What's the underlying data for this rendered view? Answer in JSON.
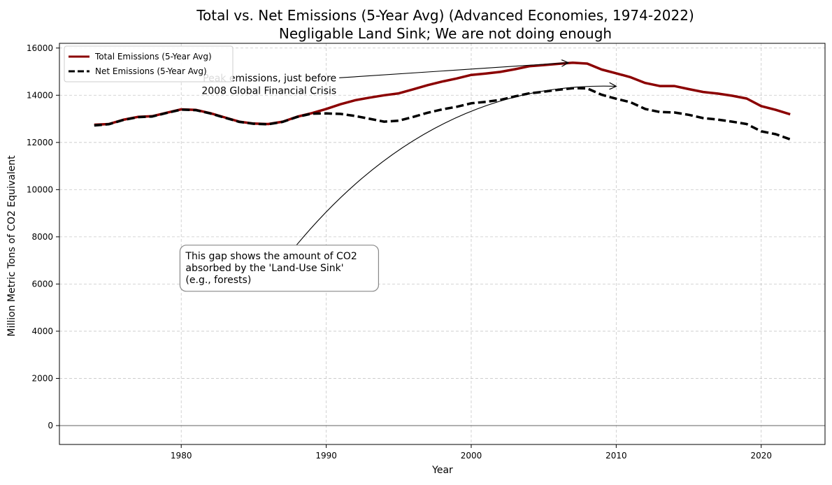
{
  "chart_data": {
    "type": "line",
    "title": "Total vs. Net Emissions (5-Year Avg) (Advanced Economies, 1974-2022)",
    "subtitle": "Negligable Land Sink; We are not doing enough",
    "xlabel": "Year",
    "ylabel": "Million Metric Tons of CO2 Equivalent",
    "xlim": [
      1971.6,
      2024.4
    ],
    "ylim": [
      -800,
      16200
    ],
    "x_ticks": [
      1980,
      1990,
      2000,
      2010,
      2020
    ],
    "y_ticks": [
      0,
      2000,
      4000,
      6000,
      8000,
      10000,
      12000,
      14000,
      16000
    ],
    "grid": true,
    "legend_position": "top-left",
    "zero_line": true,
    "x": [
      1974,
      1975,
      1976,
      1977,
      1978,
      1979,
      1980,
      1981,
      1982,
      1983,
      1984,
      1985,
      1986,
      1987,
      1988,
      1989,
      1990,
      1991,
      1992,
      1993,
      1994,
      1995,
      1996,
      1997,
      1998,
      1999,
      2000,
      2001,
      2002,
      2003,
      2004,
      2005,
      2006,
      2007,
      2008,
      2009,
      2010,
      2011,
      2012,
      2013,
      2014,
      2015,
      2016,
      2017,
      2018,
      2019,
      2020,
      2021,
      2022
    ],
    "series": [
      {
        "name": "Total Emissions (5-Year Avg)",
        "color": "#8b0000",
        "style": "solid",
        "values": [
          12750,
          12780,
          12960,
          13080,
          13110,
          13260,
          13400,
          13380,
          13240,
          13060,
          12880,
          12800,
          12780,
          12880,
          13090,
          13240,
          13420,
          13620,
          13790,
          13900,
          14000,
          14080,
          14250,
          14430,
          14580,
          14710,
          14860,
          14920,
          14990,
          15100,
          15230,
          15280,
          15330,
          15380,
          15340,
          15090,
          14930,
          14760,
          14520,
          14390,
          14390,
          14260,
          14140,
          14070,
          13980,
          13860,
          13540,
          13380,
          13190
        ]
      },
      {
        "name": "Net Emissions (5-Year Avg)",
        "color": "#000000",
        "style": "dashed",
        "values": [
          12720,
          12770,
          12950,
          13070,
          13100,
          13250,
          13390,
          13370,
          13230,
          13050,
          12870,
          12790,
          12770,
          12870,
          13080,
          13220,
          13230,
          13210,
          13120,
          13000,
          12880,
          12920,
          13080,
          13260,
          13400,
          13510,
          13660,
          13720,
          13800,
          13950,
          14080,
          14150,
          14230,
          14300,
          14290,
          14020,
          13850,
          13700,
          13420,
          13290,
          13270,
          13170,
          13030,
          12970,
          12880,
          12780,
          12470,
          12350,
          12130
        ]
      }
    ],
    "annotations": [
      {
        "lines": [
          "Peak emissions, just before",
          "2008 Global Financial Crisis"
        ],
        "target": [
          2006.7,
          15380
        ],
        "text_anchor": [
          1990.8,
          14650
        ]
      },
      {
        "lines": [
          "This gap shows the amount of CO2",
          "absorbed by the 'Land-Use Sink'",
          "(e.g., forests)"
        ],
        "target": [
          2010.0,
          14380
        ],
        "text_anchor": [
          1980.3,
          7350
        ]
      }
    ]
  }
}
